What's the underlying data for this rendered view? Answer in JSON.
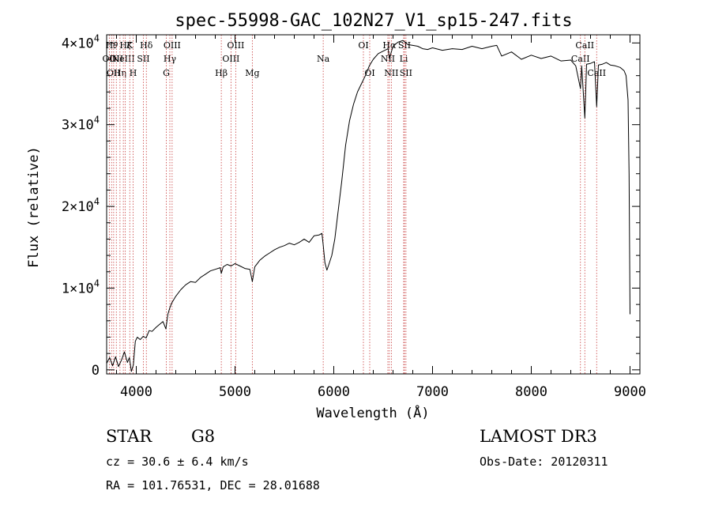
{
  "chart_data": {
    "type": "line",
    "title": "spec-55998-GAC_102N27_V1_sp15-247.fits",
    "xlabel": "Wavelength (Å)",
    "ylabel": "Flux (relative)",
    "xlim": [
      3700,
      9100
    ],
    "ylim": [
      -500,
      41000
    ],
    "xticks": [
      {
        "value": 4000,
        "label": "4000"
      },
      {
        "value": 5000,
        "label": "5000"
      },
      {
        "value": 6000,
        "label": "6000"
      },
      {
        "value": 7000,
        "label": "7000"
      },
      {
        "value": 8000,
        "label": "8000"
      },
      {
        "value": 9000,
        "label": "9000"
      }
    ],
    "yticks": [
      {
        "value": 0,
        "mantissa": "0",
        "exp": ""
      },
      {
        "value": 10000,
        "mantissa": "1×10",
        "exp": "4"
      },
      {
        "value": 20000,
        "mantissa": "2×10",
        "exp": "4"
      },
      {
        "value": 30000,
        "mantissa": "3×10",
        "exp": "4"
      },
      {
        "value": 40000,
        "mantissa": "4×10",
        "exp": "4"
      }
    ],
    "series": [
      {
        "name": "flux",
        "x": [
          3700,
          3730,
          3760,
          3790,
          3820,
          3850,
          3880,
          3910,
          3930,
          3950,
          3970,
          3990,
          4010,
          4040,
          4070,
          4100,
          4130,
          4160,
          4200,
          4240,
          4270,
          4300,
          4320,
          4340,
          4360,
          4400,
          4450,
          4500,
          4550,
          4600,
          4650,
          4700,
          4750,
          4800,
          4850,
          4861,
          4880,
          4920,
          4960,
          5000,
          5050,
          5100,
          5150,
          5175,
          5200,
          5250,
          5300,
          5350,
          5400,
          5450,
          5500,
          5550,
          5600,
          5650,
          5700,
          5750,
          5800,
          5850,
          5880,
          5893,
          5910,
          5930,
          5950,
          5980,
          6010,
          6040,
          6080,
          6120,
          6160,
          6200,
          6240,
          6280,
          6320,
          6360,
          6400,
          6450,
          6500,
          6550,
          6563,
          6600,
          6650,
          6700,
          6750,
          6800,
          6850,
          6900,
          6950,
          7000,
          7100,
          7200,
          7300,
          7400,
          7500,
          7600,
          7650,
          7700,
          7800,
          7900,
          8000,
          8100,
          8200,
          8300,
          8400,
          8450,
          8498,
          8510,
          8542,
          8560,
          8600,
          8640,
          8662,
          8680,
          8720,
          8760,
          8800,
          8850,
          8900,
          8940,
          8960,
          8980,
          8990,
          9000
        ],
        "y": [
          800,
          1500,
          500,
          1600,
          400,
          1200,
          2200,
          900,
          1500,
          -200,
          600,
          3500,
          4000,
          3700,
          4100,
          3900,
          4800,
          4700,
          5200,
          5600,
          5900,
          5000,
          6800,
          7600,
          8200,
          9000,
          9800,
          10400,
          10800,
          10700,
          11300,
          11700,
          12100,
          12300,
          12500,
          11800,
          12600,
          12900,
          12700,
          13000,
          12700,
          12400,
          12300,
          10800,
          12600,
          13400,
          13900,
          14300,
          14700,
          15000,
          15200,
          15500,
          15300,
          15600,
          16000,
          15600,
          16400,
          16500,
          16700,
          15300,
          13100,
          12200,
          12900,
          14000,
          16000,
          19000,
          23000,
          27500,
          30500,
          32500,
          34000,
          35000,
          36000,
          37200,
          38000,
          38700,
          39000,
          39300,
          38100,
          39600,
          40100,
          40300,
          39800,
          39700,
          39600,
          39300,
          39200,
          39400,
          39100,
          39300,
          39200,
          39600,
          39300,
          39600,
          39700,
          38400,
          38900,
          38000,
          38500,
          38100,
          38400,
          37800,
          37900,
          37200,
          34400,
          37200,
          30800,
          37400,
          37500,
          37700,
          32200,
          37300,
          37400,
          37600,
          37300,
          37200,
          37000,
          36600,
          36000,
          33000,
          24000,
          6800
        ]
      }
    ],
    "lines": [
      {
        "wave": 3727,
        "row": 2,
        "label": "OII"
      },
      {
        "wave": 3750,
        "row": 1,
        "label": "H𝜃"
      },
      {
        "wave": 3771,
        "row": 3,
        "label": "OII"
      },
      {
        "wave": 3798,
        "row": 2,
        "label": "OII"
      },
      {
        "wave": 3835,
        "row": 3,
        "label": "Hη"
      },
      {
        "wave": 3869,
        "row": 2,
        "label": "NeIII"
      },
      {
        "wave": 3889,
        "row": 1,
        "label": "H𝜁"
      },
      {
        "wave": 3934,
        "row": 1,
        "label": "K"
      },
      {
        "wave": 3968,
        "row": 3,
        "label": "H"
      },
      {
        "wave": 4072,
        "row": 2,
        "label": "SII"
      },
      {
        "wave": 4102,
        "row": 1,
        "label": "Hδ"
      },
      {
        "wave": 4304,
        "row": 3,
        "label": "G"
      },
      {
        "wave": 4340,
        "row": 2,
        "label": "Hγ"
      },
      {
        "wave": 4363,
        "row": 1,
        "label": "OIII"
      },
      {
        "wave": 4861,
        "row": 3,
        "label": "Hβ"
      },
      {
        "wave": 4959,
        "row": 2,
        "label": "OIII"
      },
      {
        "wave": 5007,
        "row": 1,
        "label": "OIII"
      },
      {
        "wave": 5175,
        "row": 3,
        "label": "Mg"
      },
      {
        "wave": 5893,
        "row": 2,
        "label": "Na"
      },
      {
        "wave": 6300,
        "row": 1,
        "label": "OI"
      },
      {
        "wave": 6364,
        "row": 3,
        "label": "OI"
      },
      {
        "wave": 6548,
        "row": 2,
        "label": "NII"
      },
      {
        "wave": 6563,
        "row": 1,
        "label": "Hα"
      },
      {
        "wave": 6583,
        "row": 3,
        "label": "NII"
      },
      {
        "wave": 6708,
        "row": 2,
        "label": "Li"
      },
      {
        "wave": 6716,
        "row": 1,
        "label": "SII"
      },
      {
        "wave": 6731,
        "row": 3,
        "label": "SII"
      },
      {
        "wave": 8498,
        "row": 2,
        "label": "CaII"
      },
      {
        "wave": 8542,
        "row": 1,
        "label": "CaII"
      },
      {
        "wave": 8662,
        "row": 3,
        "label": "CaII"
      }
    ]
  },
  "info": {
    "class": "STAR",
    "subclass": "G8",
    "survey": "LAMOST DR3",
    "cz": "cz = 30.6 ± 6.4 km/s",
    "obs_date": "Obs-Date: 20120311",
    "radec": "RA = 101.76531, DEC =  28.01688"
  },
  "colors": {
    "axis": "#000000",
    "spectrum": "#000000",
    "lines": "#c83c3c"
  }
}
